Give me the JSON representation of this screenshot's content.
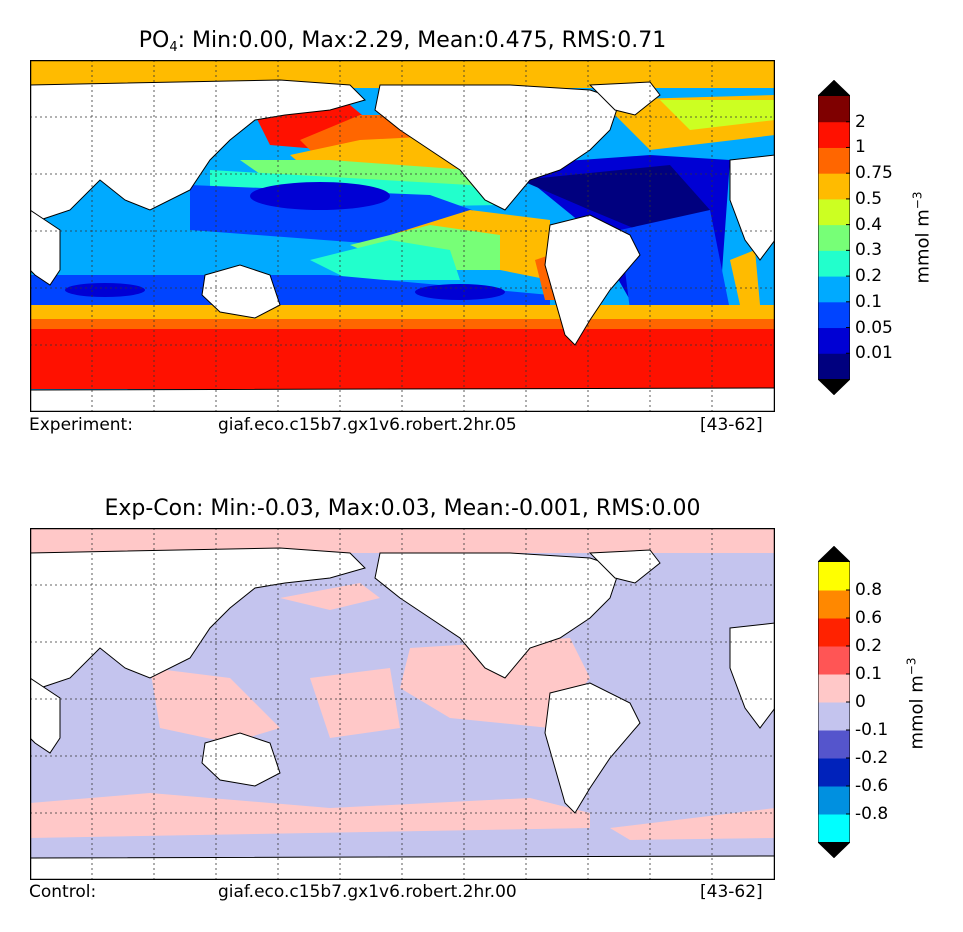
{
  "chart_data": [
    {
      "type": "heatmap",
      "title_prefix": "PO",
      "title_sub": "4",
      "title_rest": ": Min:0.00, Max:2.29, Mean:0.475, RMS:0.71",
      "stats": {
        "min": "0.00",
        "max": "2.29",
        "mean": "0.475",
        "rms": "0.71"
      },
      "colorbar": {
        "levels": [
          "0.01",
          "0.05",
          "0.1",
          "0.2",
          "0.3",
          "0.4",
          "0.5",
          "0.75",
          "1",
          "2"
        ],
        "colors": [
          "#00007f",
          "#0000d4",
          "#0044ff",
          "#00aaff",
          "#22ffcc",
          "#77ff77",
          "#ccff22",
          "#ffbb00",
          "#ff6600",
          "#ff1100",
          "#7f0000"
        ],
        "extend_colors": [
          "#000000",
          "#000000"
        ],
        "unit_base": "mmol m",
        "unit_exp": "−3"
      },
      "footer": {
        "label": "Experiment:",
        "case": "giaf.eco.c15b7.gx1v6.robert.2hr.05",
        "years": "[43-62]"
      }
    },
    {
      "type": "heatmap",
      "title": "Exp-Con: Min:-0.03, Max:0.03, Mean:-0.001, RMS:0.00",
      "stats": {
        "min": "-0.03",
        "max": "0.03",
        "mean": "-0.001",
        "rms": "0.00"
      },
      "colorbar": {
        "levels": [
          "-0.8",
          "-0.6",
          "-0.2",
          "-0.1",
          "0",
          "0.1",
          "0.2",
          "0.6",
          "0.8"
        ],
        "colors": [
          "#00ffff",
          "#0090e0",
          "#0022bb",
          "#5555cc",
          "#c4c4ee",
          "#ffc8c8",
          "#ff5555",
          "#ff2200",
          "#ff8800",
          "#ffff00"
        ],
        "extend_colors": [
          "#000000",
          "#000000"
        ],
        "unit_base": "mmol m",
        "unit_exp": "−3"
      },
      "footer": {
        "label": "Control:",
        "case": "giaf.eco.c15b7.gx1v6.robert.2hr.00",
        "years": "[43-62]"
      }
    }
  ]
}
